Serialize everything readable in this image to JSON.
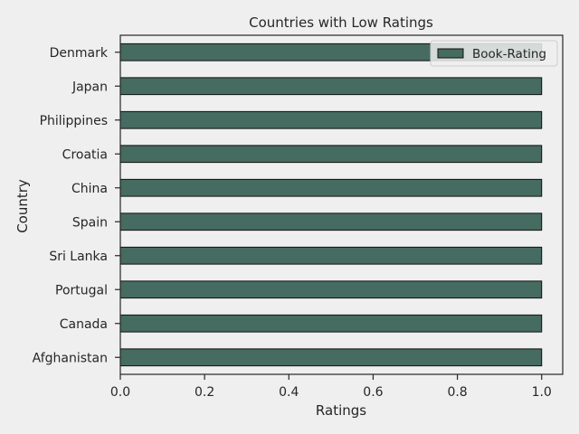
{
  "chart_data": {
    "type": "bar",
    "orientation": "horizontal",
    "title": "Countries with Low Ratings",
    "xlabel": "Ratings",
    "ylabel": "Country",
    "categories": [
      "Denmark",
      "Japan",
      "Philippines",
      "Croatia",
      "China",
      "Spain",
      "Sri Lanka",
      "Portugal",
      "Canada",
      "Afghanistan"
    ],
    "series": [
      {
        "name": "Book-Rating",
        "values": [
          1.0,
          1.0,
          1.0,
          1.0,
          1.0,
          1.0,
          1.0,
          1.0,
          1.0,
          1.0
        ],
        "color": "#466b60"
      }
    ],
    "xlim": [
      0,
      1.05
    ],
    "xticks": [
      "0.0",
      "0.2",
      "0.4",
      "0.6",
      "0.8",
      "1.0"
    ],
    "grid": false,
    "legend_position": "top-right",
    "colors": {
      "background": "#efefef",
      "bar": "#466b60",
      "edge": "#111111",
      "text": "#262626"
    }
  }
}
